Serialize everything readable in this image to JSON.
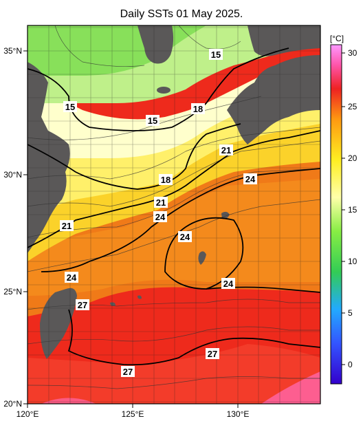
{
  "title": "Daily SSTs 01 May 2025.",
  "unit_label": "[°C]",
  "lat_labels": [
    "35°N",
    "30°N",
    "25°N",
    "20°N"
  ],
  "lon_labels": [
    "120°E",
    "125°E",
    "130°E"
  ],
  "colorbar_ticks": [
    "30",
    "25",
    "20",
    "15",
    "10",
    "5",
    "0"
  ],
  "contour_labels": [
    "15",
    "18",
    "15",
    "15",
    "21",
    "18",
    "24",
    "21",
    "24",
    "21",
    "24",
    "24",
    "24",
    "27",
    "27",
    "27"
  ]
}
